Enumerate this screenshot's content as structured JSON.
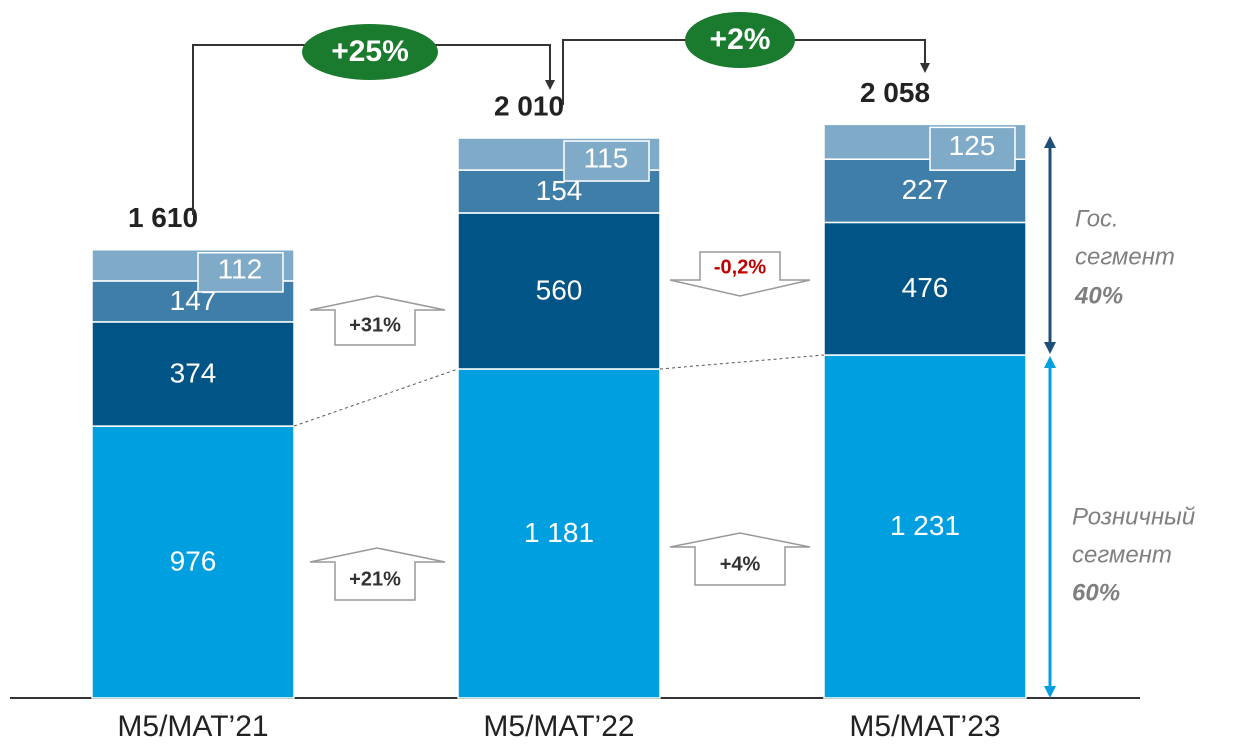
{
  "chart_data": {
    "type": "bar",
    "stacked": true,
    "categories": [
      "M5/MAT’21",
      "M5/MAT’22",
      "M5/MAT’23"
    ],
    "series": [
      {
        "name": "Розничный сегмент",
        "color": "#009fdf",
        "values": [
          976,
          1181,
          1231
        ],
        "value_labels": [
          "976",
          "1 181",
          "1 231"
        ]
      },
      {
        "name": "Гос. сегмент 1",
        "color": "#005486",
        "values": [
          374,
          560,
          476
        ]
      },
      {
        "name": "Гос. сегмент 2",
        "color": "#3f7ea8",
        "values": [
          147,
          154,
          227
        ]
      },
      {
        "name": "Гос. сегмент 3",
        "color": "#7fabc9",
        "values": [
          112,
          115,
          125
        ]
      }
    ],
    "totals": {
      "values": [
        1610,
        2010,
        2058
      ],
      "value_labels": [
        "1 610",
        "2 010",
        "2 058"
      ]
    },
    "ylim": [
      0,
      2500
    ],
    "annotations": [
      {
        "text": "+25%"
      },
      {
        "text": "+2%"
      },
      {
        "text": "+31%"
      },
      {
        "text": "-0,2%"
      },
      {
        "text": "+21%"
      },
      {
        "text": "+4%"
      }
    ],
    "segment_labels": [
      {
        "lines": [
          "Гос.",
          "сегмент"
        ],
        "share": "40%"
      },
      {
        "lines": [
          "Розничный",
          "сегмент"
        ],
        "share": "60%"
      }
    ]
  }
}
